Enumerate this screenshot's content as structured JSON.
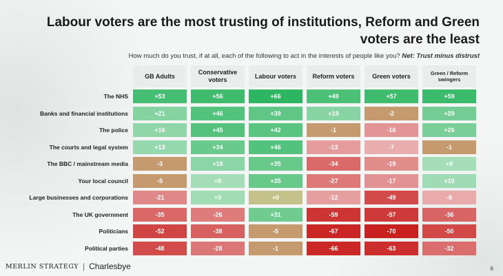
{
  "title": "Labour voters are the most trusting of institutions, Reform and Green voters are the least",
  "subtitle": "How much do you trust, if at all, each of the following to act in the interests of people like you?",
  "subtitle_emphasis": "Net: Trust minus distrust",
  "footer": {
    "brand_left": "MERLIN STRATEGY",
    "brand_right": "Charlesbye",
    "page_number": "6"
  },
  "colors": {
    "positive": "#27b35c",
    "negative": "#c8201f",
    "neutral": "#c4c28a"
  },
  "chart_data": {
    "type": "heatmap",
    "title": "Labour voters are the most trusting of institutions, Reform and Green voters are the least",
    "columns": [
      "GB Adults",
      "Conservative voters",
      "Labour voters",
      "Reform voters",
      "Green voters",
      "Green / Reform swingers"
    ],
    "rows": [
      "The NHS",
      "Banks and financial institutions",
      "The police",
      "The courts and legal system",
      "The BBC / mainstream media",
      "Your local council",
      "Large businesses and corporations",
      "The UK government",
      "Politicians",
      "Political parties"
    ],
    "values": [
      [
        53,
        56,
        66,
        49,
        57,
        59
      ],
      [
        21,
        46,
        39,
        19,
        -2,
        29
      ],
      [
        16,
        45,
        42,
        -1,
        -16,
        26
      ],
      [
        13,
        34,
        46,
        -13,
        -7,
        -1
      ],
      [
        -3,
        18,
        35,
        -34,
        -19,
        8
      ],
      [
        -5,
        8,
        35,
        -27,
        -17,
        10
      ],
      [
        -21,
        9,
        0,
        -12,
        -49,
        -8
      ],
      [
        -35,
        -26,
        31,
        -59,
        -57,
        -36
      ],
      [
        -52,
        -38,
        -5,
        -67,
        -70,
        -50
      ],
      [
        -48,
        -28,
        -1,
        -66,
        -63,
        -32
      ]
    ],
    "labels": [
      [
        "+53",
        "+56",
        "+66",
        "+49",
        "+57",
        "+59"
      ],
      [
        "+21",
        "+46",
        "+39",
        "+19",
        "-2",
        "+29"
      ],
      [
        "+16",
        "+45",
        "+42",
        "-1",
        "-16",
        "+26"
      ],
      [
        "+13",
        "+34",
        "+46",
        "-13",
        "-7",
        "-1"
      ],
      [
        "-3",
        "+18",
        "+35",
        "-34",
        "-19",
        "+8"
      ],
      [
        "-5",
        "+8",
        "+35",
        "-27",
        "-17",
        "+10"
      ],
      [
        "-21",
        "+9",
        "+0",
        "-12",
        "-49",
        "-8"
      ],
      [
        "-35",
        "-26",
        "+31",
        "-59",
        "-57",
        "-36"
      ],
      [
        "-52",
        "-38",
        "-5",
        "-67",
        "-70",
        "-50"
      ],
      [
        "-48",
        "-28",
        "-1",
        "-66",
        "-63",
        "-32"
      ]
    ]
  }
}
